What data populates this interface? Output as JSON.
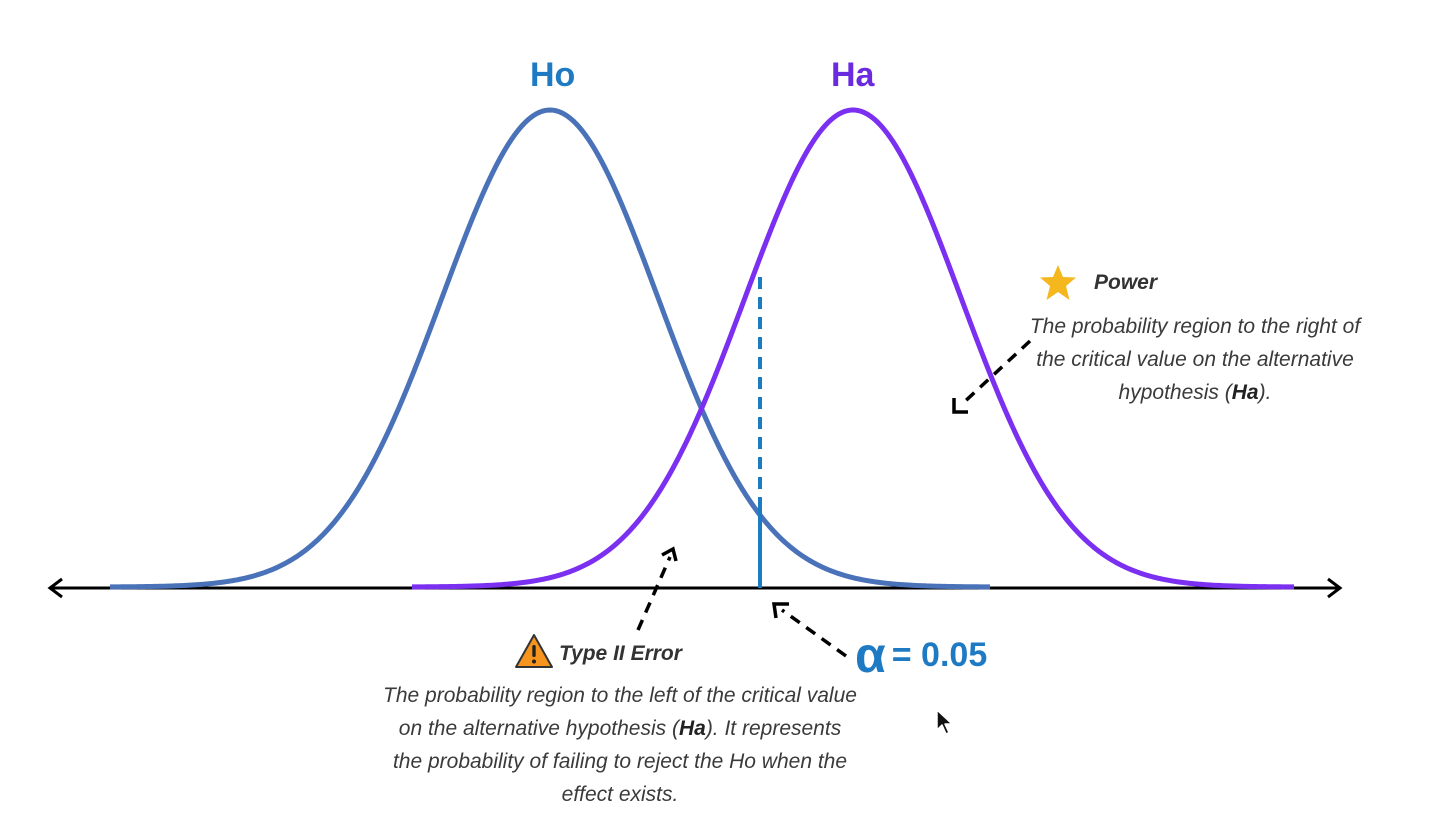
{
  "labels": {
    "ho": "Ho",
    "ha": "Ha"
  },
  "power": {
    "icon": "star-icon",
    "title": "Power",
    "desc_before": "The probability region to the right of the critical value on the alternative hypothesis (",
    "desc_bold": "Ha",
    "desc_after": ")."
  },
  "type2": {
    "icon": "warning-icon",
    "title": "Type II Error",
    "desc_before": "The probability region to the left of the critical value on the alternative hypothesis (",
    "desc_bold": "Ha",
    "desc_after": "). It represents the probability of failing to reject the Ho when the effect exists."
  },
  "alpha": {
    "symbol": "α",
    "value_text": "= 0.05"
  },
  "colors": {
    "ho_curve": "#4a72b8",
    "ha_curve": "#7b2ff0",
    "critical_line": "#1b7cc2",
    "ho_label": "#1f7ac4",
    "ha_label": "#6a2be0",
    "alpha": "#1f7ac4",
    "star": "#f4b71e",
    "warning": "#f7941d"
  }
}
